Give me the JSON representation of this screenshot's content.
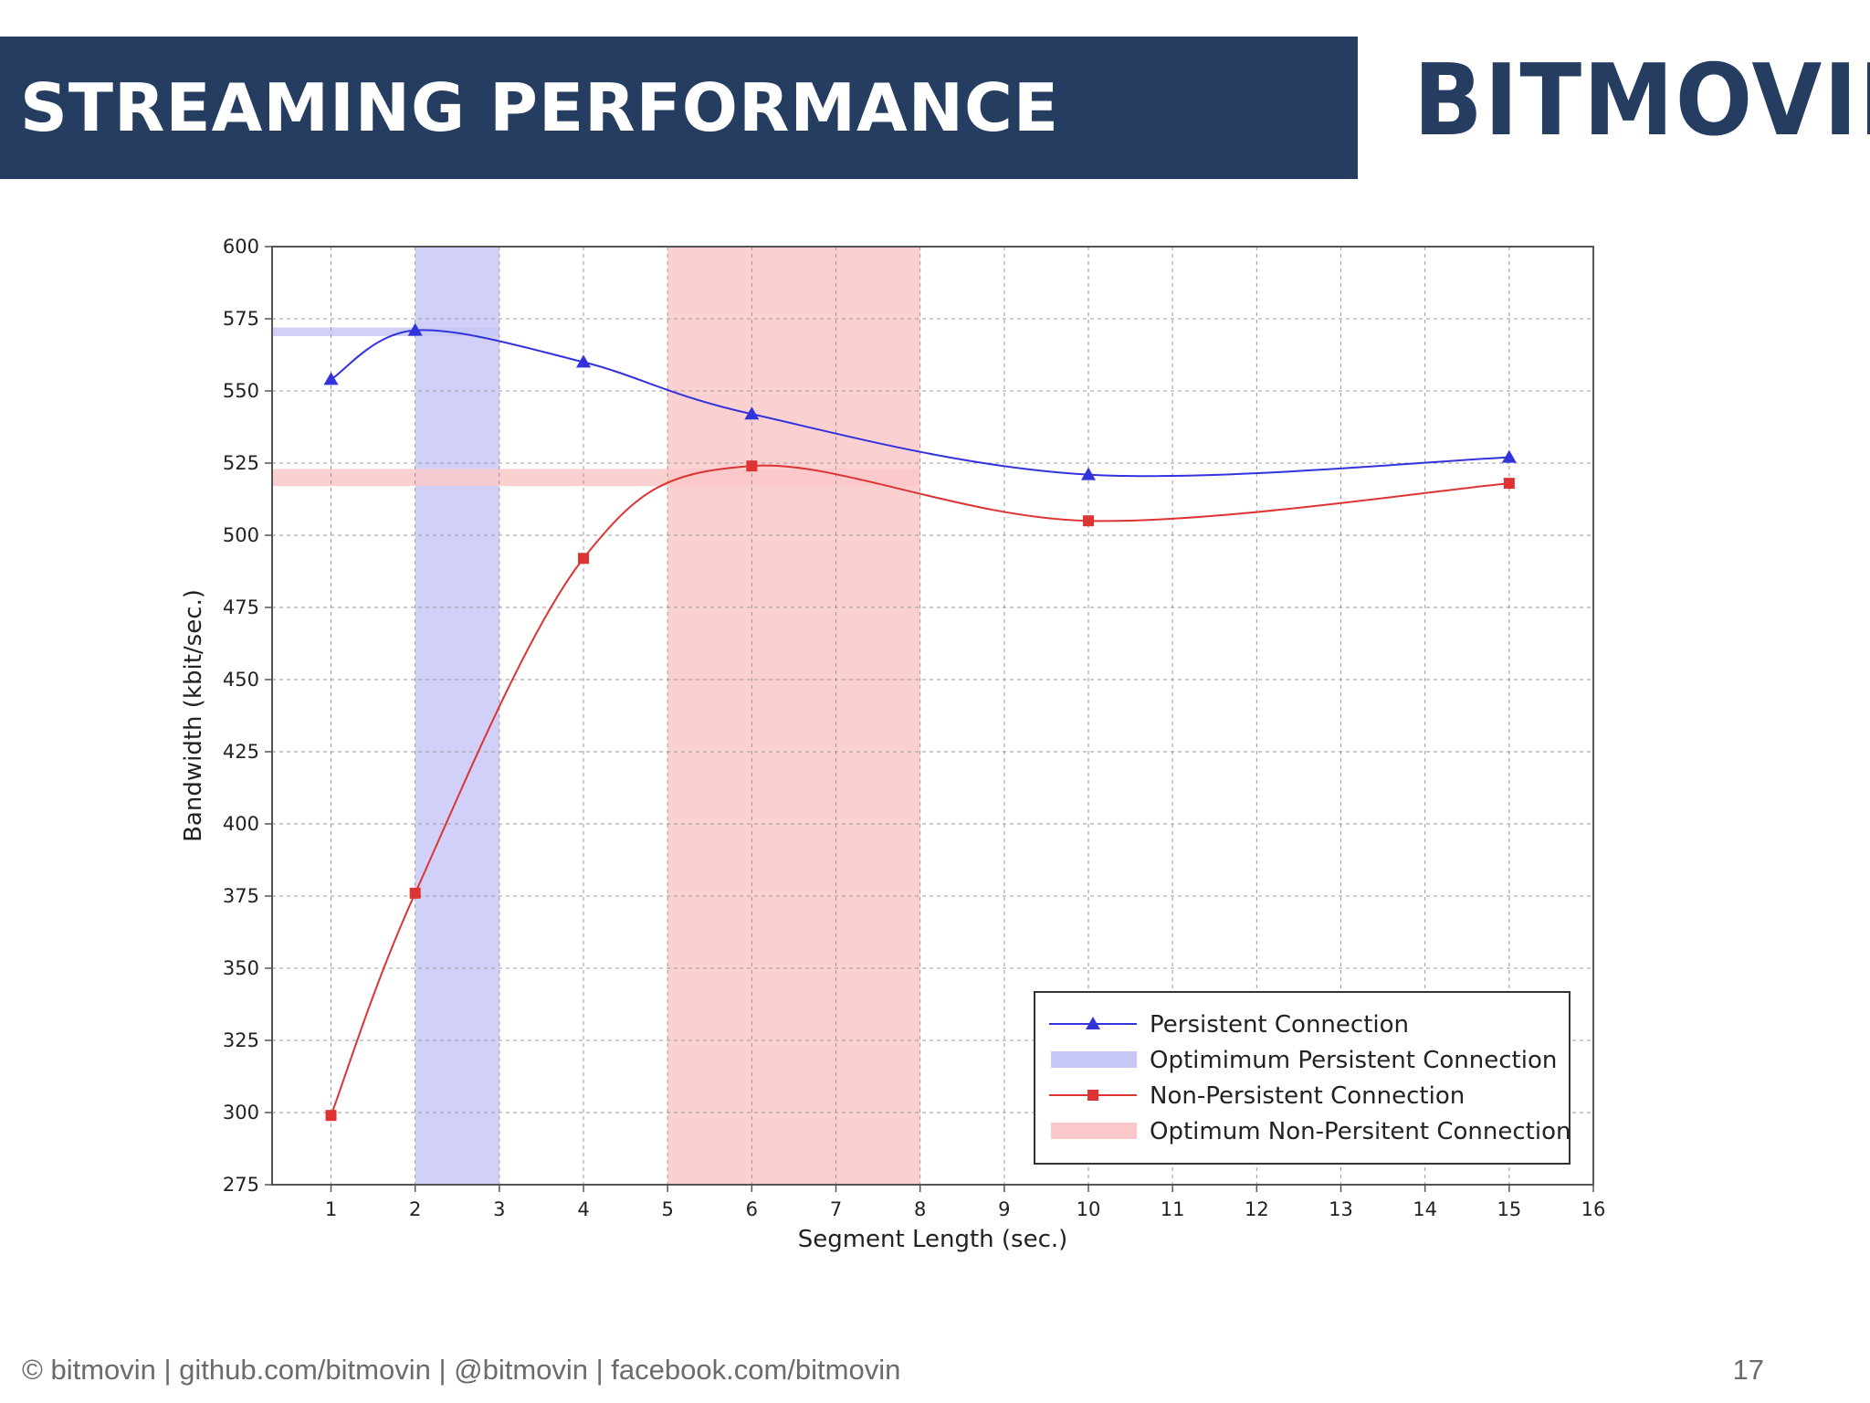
{
  "header": {
    "title": "STREAMING PERFORMANCE",
    "logo_text": "BITMOVIN",
    "bar_color": "#243d61"
  },
  "footer": {
    "text": "© bitmovin | github.com/bitmovin | @bitmovin | facebook.com/bitmovin",
    "page_number": "17"
  },
  "chart_data": {
    "type": "line",
    "title": "",
    "xlabel": "Segment Length (sec.)",
    "ylabel": "Bandwidth (kbit/sec.)",
    "xlim": [
      0.3,
      16
    ],
    "ylim": [
      275,
      600
    ],
    "xticks": [
      1,
      2,
      3,
      4,
      5,
      6,
      7,
      8,
      9,
      10,
      11,
      12,
      13,
      14,
      15,
      16
    ],
    "yticks": [
      275,
      300,
      325,
      350,
      375,
      400,
      425,
      450,
      475,
      500,
      525,
      550,
      575,
      600
    ],
    "grid": true,
    "legend_position": "bottom-right",
    "series": [
      {
        "name": "Persistent Connection",
        "color": "#3333dd",
        "marker": "triangle",
        "x": [
          1,
          2,
          4,
          6,
          10,
          15
        ],
        "y": [
          554,
          571,
          560,
          542,
          521,
          527
        ]
      },
      {
        "name": "Non-Persistent Connection",
        "color": "#dd3333",
        "marker": "square",
        "x": [
          1,
          2,
          4,
          6,
          10,
          15
        ],
        "y": [
          299,
          376,
          492,
          524,
          505,
          518
        ]
      }
    ],
    "optimum_regions": [
      {
        "name": "Optimimum Persistent Connection",
        "color": "#c8c8f8",
        "x_range": [
          2,
          3
        ],
        "y_range": [
          569,
          572
        ]
      },
      {
        "name": "Optimum Non-Persitent Connection",
        "color": "#fac8c8",
        "x_range": [
          5,
          8
        ],
        "y_range": [
          517,
          523
        ]
      }
    ]
  }
}
